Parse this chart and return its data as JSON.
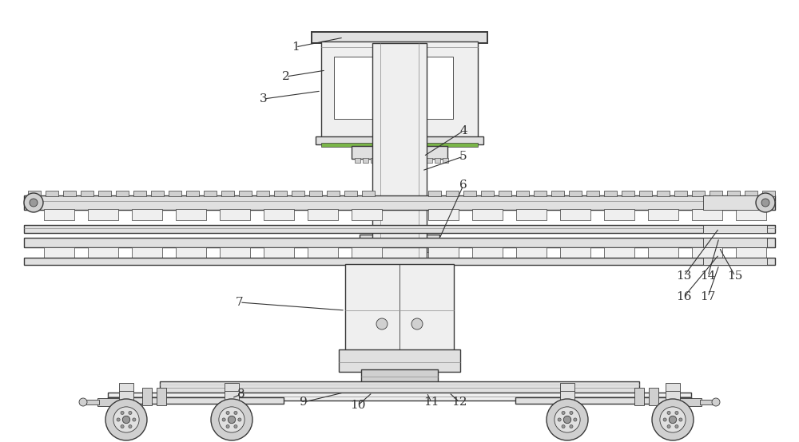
{
  "bg_color": "#ffffff",
  "line_color": "#3a3a3a",
  "light_gray": "#cccccc",
  "mid_gray": "#999999",
  "dark_gray": "#666666",
  "fill_light": "#efefef",
  "fill_mid": "#e0e0e0",
  "fill_dark": "#d0d0d0",
  "label_color": "#333333",
  "figsize": [
    10.0,
    5.54
  ],
  "dpi": 100
}
